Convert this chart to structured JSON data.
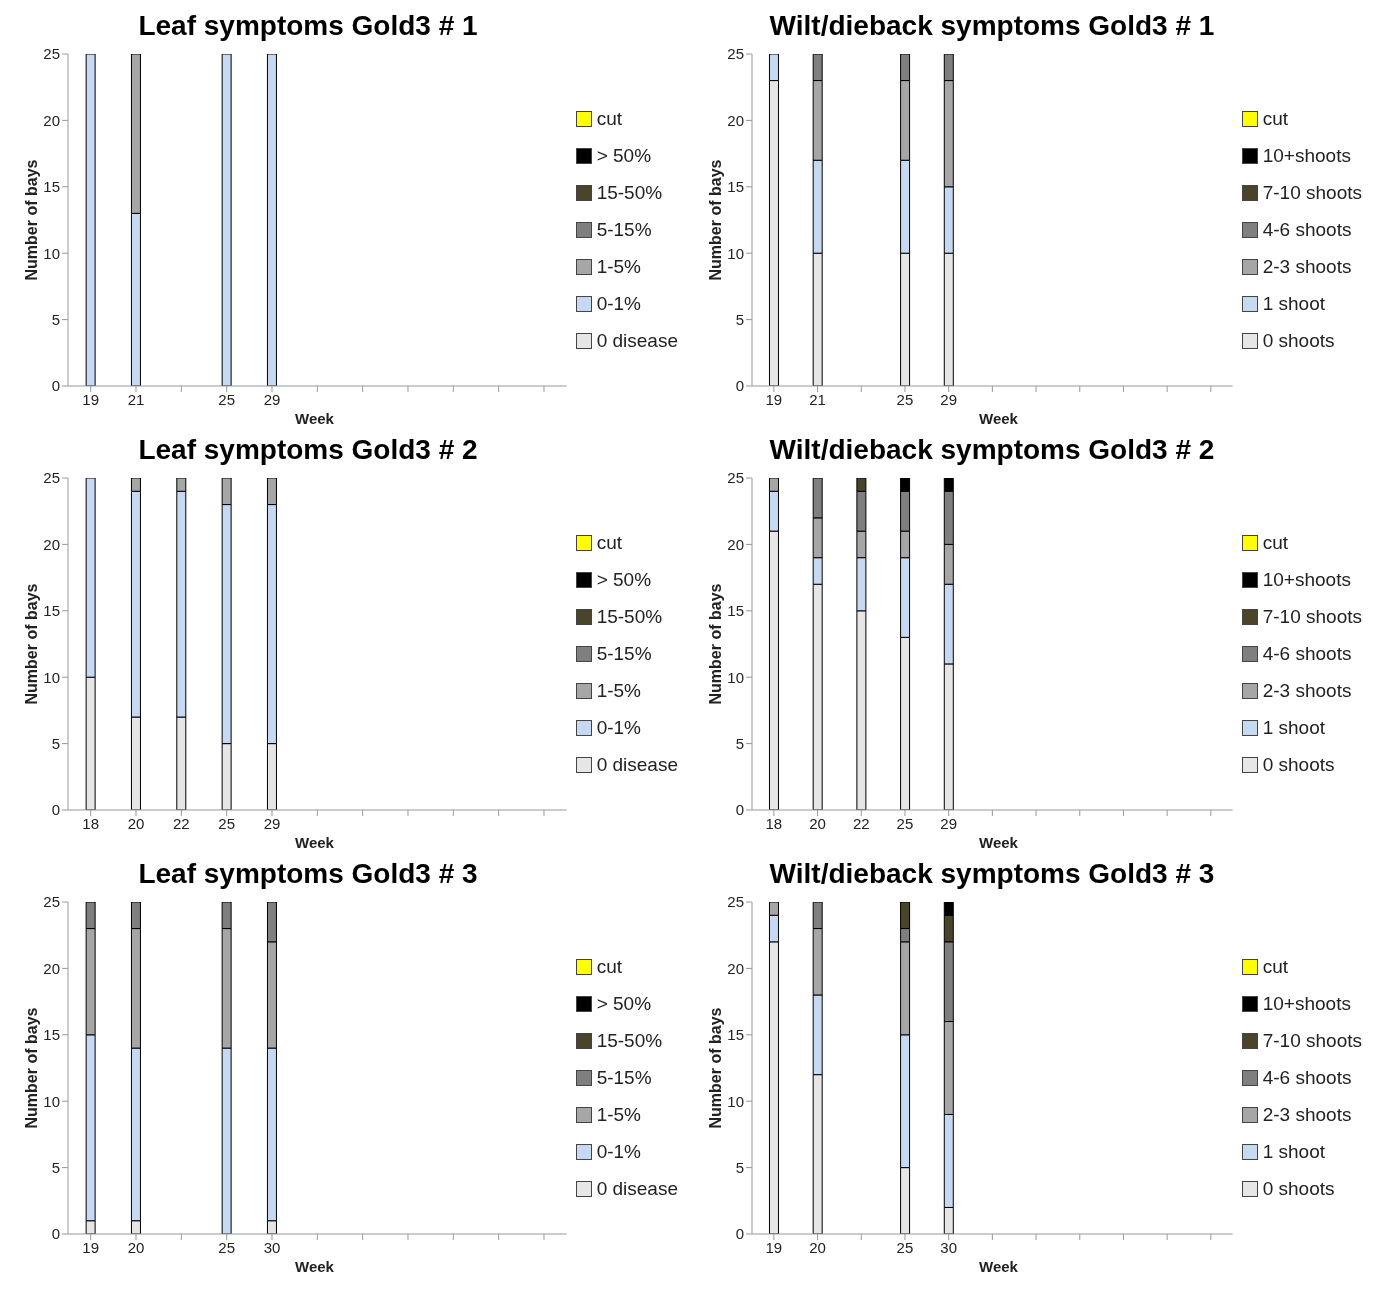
{
  "chart_data": [
    {
      "type": "bar",
      "stacked": true,
      "title": "Leaf symptoms Gold3 # 1",
      "xlabel": "Week",
      "ylabel": "Number of bays",
      "legend": "right",
      "grid": false,
      "ylim": [
        0,
        25
      ],
      "yticks": [
        0,
        5,
        10,
        15,
        20,
        25
      ],
      "categories": [
        "19",
        "21",
        null,
        "25",
        "29",
        null,
        null,
        null,
        null,
        null,
        null
      ],
      "series": [
        {
          "name": "0 disease",
          "color": "#e6e6e6",
          "values": [
            0,
            0,
            null,
            0,
            0,
            null,
            null,
            null,
            null,
            null,
            null
          ]
        },
        {
          "name": "0-1%",
          "color": "#c6d9f1",
          "values": [
            25,
            13,
            null,
            25,
            25,
            null,
            null,
            null,
            null,
            null,
            null
          ]
        },
        {
          "name": "1-5%",
          "color": "#a6a6a6",
          "values": [
            0,
            12,
            null,
            0,
            0,
            null,
            null,
            null,
            null,
            null,
            null
          ]
        },
        {
          "name": "5-15%",
          "color": "#7f7f7f",
          "values": [
            0,
            0,
            null,
            0,
            0,
            null,
            null,
            null,
            null,
            null,
            null
          ]
        },
        {
          "name": "15-50%",
          "color": "#4a452a",
          "values": [
            0,
            0,
            null,
            0,
            0,
            null,
            null,
            null,
            null,
            null,
            null
          ]
        },
        {
          "name": "> 50%",
          "color": "#000000",
          "values": [
            0,
            0,
            null,
            0,
            0,
            null,
            null,
            null,
            null,
            null,
            null
          ]
        },
        {
          "name": "cut",
          "color": "#ffff00",
          "values": [
            0,
            0,
            null,
            0,
            0,
            null,
            null,
            null,
            null,
            null,
            null
          ]
        }
      ]
    },
    {
      "type": "bar",
      "stacked": true,
      "title": "Wilt/dieback symptoms Gold3 # 1",
      "xlabel": "Week",
      "ylabel": "Number of bays",
      "legend": "right",
      "grid": false,
      "ylim": [
        0,
        25
      ],
      "yticks": [
        0,
        5,
        10,
        15,
        20,
        25
      ],
      "categories": [
        "19",
        "21",
        null,
        "25",
        "29",
        null,
        null,
        null,
        null,
        null,
        null
      ],
      "series": [
        {
          "name": "0 shoots",
          "color": "#e6e6e6",
          "values": [
            23,
            10,
            null,
            10,
            10,
            null,
            null,
            null,
            null,
            null,
            null
          ]
        },
        {
          "name": "1 shoot",
          "color": "#c6d9f1",
          "values": [
            2,
            7,
            null,
            7,
            5,
            null,
            null,
            null,
            null,
            null,
            null
          ]
        },
        {
          "name": "2-3 shoots",
          "color": "#a6a6a6",
          "values": [
            0,
            6,
            null,
            6,
            8,
            null,
            null,
            null,
            null,
            null,
            null
          ]
        },
        {
          "name": "4-6 shoots",
          "color": "#7f7f7f",
          "values": [
            0,
            2,
            null,
            2,
            2,
            null,
            null,
            null,
            null,
            null,
            null
          ]
        },
        {
          "name": "7-10 shoots",
          "color": "#4a452a",
          "values": [
            0,
            0,
            null,
            0,
            0,
            null,
            null,
            null,
            null,
            null,
            null
          ]
        },
        {
          "name": "10+shoots",
          "color": "#000000",
          "values": [
            0,
            0,
            null,
            0,
            0,
            null,
            null,
            null,
            null,
            null,
            null
          ]
        },
        {
          "name": "cut",
          "color": "#ffff00",
          "values": [
            0,
            0,
            null,
            0,
            0,
            null,
            null,
            null,
            null,
            null,
            null
          ]
        }
      ]
    },
    {
      "type": "bar",
      "stacked": true,
      "title": "Leaf symptoms Gold3 # 2",
      "xlabel": "Week",
      "ylabel": "Number of bays",
      "legend": "right",
      "grid": false,
      "ylim": [
        0,
        25
      ],
      "yticks": [
        0,
        5,
        10,
        15,
        20,
        25
      ],
      "categories": [
        "18",
        "20",
        "22",
        "25",
        "29",
        null,
        null,
        null,
        null,
        null,
        null
      ],
      "series": [
        {
          "name": "0 disease",
          "color": "#e6e6e6",
          "values": [
            10,
            7,
            7,
            5,
            5,
            null,
            null,
            null,
            null,
            null,
            null
          ]
        },
        {
          "name": "0-1%",
          "color": "#c6d9f1",
          "values": [
            15,
            17,
            17,
            18,
            18,
            null,
            null,
            null,
            null,
            null,
            null
          ]
        },
        {
          "name": "1-5%",
          "color": "#a6a6a6",
          "values": [
            0,
            1,
            1,
            2,
            2,
            null,
            null,
            null,
            null,
            null,
            null
          ]
        },
        {
          "name": "5-15%",
          "color": "#7f7f7f",
          "values": [
            0,
            0,
            0,
            0,
            0,
            null,
            null,
            null,
            null,
            null,
            null
          ]
        },
        {
          "name": "15-50%",
          "color": "#4a452a",
          "values": [
            0,
            0,
            0,
            0,
            0,
            null,
            null,
            null,
            null,
            null,
            null
          ]
        },
        {
          "name": "> 50%",
          "color": "#000000",
          "values": [
            0,
            0,
            0,
            0,
            0,
            null,
            null,
            null,
            null,
            null,
            null
          ]
        },
        {
          "name": "cut",
          "color": "#ffff00",
          "values": [
            0,
            0,
            0,
            0,
            0,
            null,
            null,
            null,
            null,
            null,
            null
          ]
        }
      ]
    },
    {
      "type": "bar",
      "stacked": true,
      "title": "Wilt/dieback symptoms Gold3 # 2",
      "xlabel": "Week",
      "ylabel": "Number of bays",
      "legend": "right",
      "grid": false,
      "ylim": [
        0,
        25
      ],
      "yticks": [
        0,
        5,
        10,
        15,
        20,
        25
      ],
      "categories": [
        "18",
        "20",
        "22",
        "25",
        "29",
        null,
        null,
        null,
        null,
        null,
        null
      ],
      "series": [
        {
          "name": "0 shoots",
          "color": "#e6e6e6",
          "values": [
            21,
            17,
            15,
            13,
            11,
            null,
            null,
            null,
            null,
            null,
            null
          ]
        },
        {
          "name": "1 shoot",
          "color": "#c6d9f1",
          "values": [
            3,
            2,
            4,
            6,
            6,
            null,
            null,
            null,
            null,
            null,
            null
          ]
        },
        {
          "name": "2-3 shoots",
          "color": "#a6a6a6",
          "values": [
            1,
            3,
            2,
            2,
            3,
            null,
            null,
            null,
            null,
            null,
            null
          ]
        },
        {
          "name": "4-6 shoots",
          "color": "#7f7f7f",
          "values": [
            0,
            3,
            3,
            3,
            4,
            null,
            null,
            null,
            null,
            null,
            null
          ]
        },
        {
          "name": "7-10 shoots",
          "color": "#4a452a",
          "values": [
            0,
            0,
            1,
            0,
            0,
            null,
            null,
            null,
            null,
            null,
            null
          ]
        },
        {
          "name": "10+shoots",
          "color": "#000000",
          "values": [
            0,
            0,
            0,
            1,
            1,
            null,
            null,
            null,
            null,
            null,
            null
          ]
        },
        {
          "name": "cut",
          "color": "#ffff00",
          "values": [
            0,
            0,
            0,
            0,
            0,
            null,
            null,
            null,
            null,
            null,
            null
          ]
        }
      ]
    },
    {
      "type": "bar",
      "stacked": true,
      "title": "Leaf symptoms Gold3 # 3",
      "xlabel": "Week",
      "ylabel": "Number of bays",
      "legend": "right",
      "grid": false,
      "ylim": [
        0,
        25
      ],
      "yticks": [
        0,
        5,
        10,
        15,
        20,
        25
      ],
      "categories": [
        "19",
        "20",
        null,
        "25",
        "30",
        null,
        null,
        null,
        null,
        null,
        null
      ],
      "series": [
        {
          "name": "0 disease",
          "color": "#e6e6e6",
          "values": [
            1,
            1,
            null,
            0,
            1,
            null,
            null,
            null,
            null,
            null,
            null
          ]
        },
        {
          "name": "0-1%",
          "color": "#c6d9f1",
          "values": [
            14,
            13,
            null,
            14,
            13,
            null,
            null,
            null,
            null,
            null,
            null
          ]
        },
        {
          "name": "1-5%",
          "color": "#a6a6a6",
          "values": [
            8,
            9,
            null,
            9,
            8,
            null,
            null,
            null,
            null,
            null,
            null
          ]
        },
        {
          "name": "5-15%",
          "color": "#7f7f7f",
          "values": [
            2,
            2,
            null,
            2,
            3,
            null,
            null,
            null,
            null,
            null,
            null
          ]
        },
        {
          "name": "15-50%",
          "color": "#4a452a",
          "values": [
            0,
            0,
            null,
            0,
            0,
            null,
            null,
            null,
            null,
            null,
            null
          ]
        },
        {
          "name": "> 50%",
          "color": "#000000",
          "values": [
            0,
            0,
            null,
            0,
            0,
            null,
            null,
            null,
            null,
            null,
            null
          ]
        },
        {
          "name": "cut",
          "color": "#ffff00",
          "values": [
            0,
            0,
            null,
            0,
            0,
            null,
            null,
            null,
            null,
            null,
            null
          ]
        }
      ]
    },
    {
      "type": "bar",
      "stacked": true,
      "title": "Wilt/dieback symptoms Gold3 # 3",
      "xlabel": "Week",
      "ylabel": "Number of bays",
      "legend": "right",
      "grid": false,
      "ylim": [
        0,
        25
      ],
      "yticks": [
        0,
        5,
        10,
        15,
        20,
        25
      ],
      "categories": [
        "19",
        "20",
        null,
        "25",
        "30",
        null,
        null,
        null,
        null,
        null,
        null
      ],
      "series": [
        {
          "name": "0 shoots",
          "color": "#e6e6e6",
          "values": [
            22,
            12,
            null,
            5,
            2,
            null,
            null,
            null,
            null,
            null,
            null
          ]
        },
        {
          "name": "1 shoot",
          "color": "#c6d9f1",
          "values": [
            2,
            6,
            null,
            10,
            7,
            null,
            null,
            null,
            null,
            null,
            null
          ]
        },
        {
          "name": "2-3 shoots",
          "color": "#a6a6a6",
          "values": [
            1,
            5,
            null,
            7,
            7,
            null,
            null,
            null,
            null,
            null,
            null
          ]
        },
        {
          "name": "4-6 shoots",
          "color": "#7f7f7f",
          "values": [
            0,
            2,
            null,
            1,
            6,
            null,
            null,
            null,
            null,
            null,
            null
          ]
        },
        {
          "name": "7-10 shoots",
          "color": "#4a452a",
          "values": [
            0,
            0,
            null,
            2,
            2,
            null,
            null,
            null,
            null,
            null,
            null
          ]
        },
        {
          "name": "10+shoots",
          "color": "#000000",
          "values": [
            0,
            0,
            null,
            0,
            1,
            null,
            null,
            null,
            null,
            null,
            null
          ]
        },
        {
          "name": "cut",
          "color": "#ffff00",
          "values": [
            0,
            0,
            null,
            0,
            0,
            null,
            null,
            null,
            null,
            null,
            null
          ]
        }
      ]
    }
  ]
}
